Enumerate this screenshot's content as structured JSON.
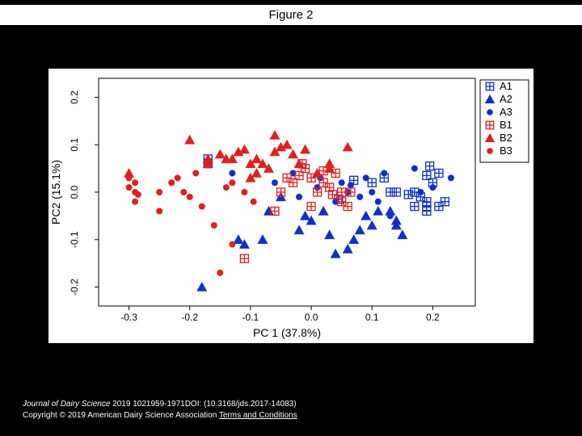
{
  "title": "Figure 2",
  "footer": {
    "journal": "Journal of Dairy Science",
    "citation": " 2019 1021959-1971DOI: (10.3168/jds.2017-14083)",
    "copyright": "Copyright © 2019 American Dairy Science Association ",
    "terms": "Terms and Conditions"
  },
  "chart": {
    "type": "scatter",
    "background_color": "#ffffff",
    "plot_border_color": "#000000",
    "xlabel": "PC 1 (37.8%)",
    "ylabel": "PC2 (15.1%)",
    "label_fontsize": 14,
    "tick_fontsize": 12,
    "xlim": [
      -0.35,
      0.27
    ],
    "ylim": [
      -0.24,
      0.24
    ],
    "xticks": [
      -0.3,
      -0.2,
      -0.1,
      0.0,
      0.1,
      0.2
    ],
    "yticks": [
      -0.2,
      -0.1,
      0.0,
      0.1,
      0.2
    ],
    "x_tick_labels": [
      "-0.3",
      "-0.2",
      "-0.1",
      "0.0",
      "0.1",
      "0.2"
    ],
    "y_tick_labels": [
      "-0.2",
      "-0.1",
      "0.0",
      "0.1",
      "0.2"
    ],
    "series": [
      {
        "id": "A1",
        "label": "A1",
        "marker": "square-open-plus",
        "color": "#1030c8",
        "size": 5,
        "points": [
          [
            -0.17,
            0.07
          ],
          [
            -0.17,
            0.06
          ],
          [
            0.07,
            0.025
          ],
          [
            0.13,
            0.0
          ],
          [
            0.14,
            0.0
          ],
          [
            0.16,
            -0.005
          ],
          [
            0.17,
            0.0
          ],
          [
            0.18,
            -0.01
          ],
          [
            0.17,
            -0.03
          ],
          [
            0.19,
            -0.02
          ],
          [
            0.19,
            -0.03
          ],
          [
            0.19,
            -0.04
          ],
          [
            0.21,
            -0.03
          ],
          [
            0.22,
            -0.02
          ],
          [
            0.2,
            0.02
          ],
          [
            0.19,
            0.035
          ],
          [
            0.21,
            0.04
          ],
          [
            0.12,
            0.03
          ],
          [
            0.1,
            0.02
          ],
          [
            0.195,
            0.055
          ],
          [
            0.045,
            -0.015
          ]
        ]
      },
      {
        "id": "A2",
        "label": "A2",
        "marker": "triangle",
        "color": "#1030c8",
        "size": 5,
        "points": [
          [
            -0.18,
            -0.2
          ],
          [
            -0.12,
            -0.1
          ],
          [
            -0.11,
            -0.11
          ],
          [
            -0.08,
            -0.1
          ],
          [
            -0.07,
            -0.04
          ],
          [
            -0.05,
            -0.01
          ],
          [
            -0.02,
            -0.08
          ],
          [
            -0.01,
            -0.05
          ],
          [
            0.0,
            -0.06
          ],
          [
            0.02,
            -0.04
          ],
          [
            0.03,
            -0.09
          ],
          [
            0.04,
            -0.13
          ],
          [
            0.06,
            -0.12
          ],
          [
            0.07,
            -0.1
          ],
          [
            0.08,
            -0.08
          ],
          [
            0.09,
            -0.05
          ],
          [
            0.1,
            -0.07
          ],
          [
            0.11,
            -0.04
          ],
          [
            0.14,
            -0.06
          ],
          [
            0.14,
            -0.07
          ],
          [
            0.15,
            -0.09
          ],
          [
            0.13,
            -0.04
          ]
        ]
      },
      {
        "id": "A3",
        "label": "A3",
        "marker": "circle",
        "color": "#1030c8",
        "size": 4,
        "points": [
          [
            -0.17,
            0.065
          ],
          [
            -0.13,
            0.04
          ],
          [
            -0.06,
            0.02
          ],
          [
            -0.03,
            0.04
          ],
          [
            -0.02,
            -0.01
          ],
          [
            0.01,
            0.01
          ],
          [
            0.04,
            -0.02
          ],
          [
            0.05,
            0.02
          ],
          [
            0.06,
            0.0
          ],
          [
            0.08,
            -0.01
          ],
          [
            0.09,
            0.03
          ],
          [
            0.11,
            -0.02
          ],
          [
            0.12,
            0.04
          ],
          [
            0.13,
            -0.05
          ],
          [
            0.17,
            0.05
          ],
          [
            0.18,
            0.0
          ],
          [
            0.2,
            0.01
          ],
          [
            0.23,
            0.03
          ],
          [
            0.1,
            0.0
          ],
          [
            0.015,
            0.03
          ],
          [
            0.065,
            0.015
          ]
        ]
      },
      {
        "id": "B1",
        "label": "B1",
        "marker": "square-open-plus",
        "color": "#e02020",
        "size": 5,
        "points": [
          [
            -0.04,
            0.03
          ],
          [
            -0.03,
            0.02
          ],
          [
            -0.02,
            0.035
          ],
          [
            -0.01,
            0.05
          ],
          [
            0.0,
            0.03
          ],
          [
            0.01,
            0.0
          ],
          [
            0.02,
            0.02
          ],
          [
            0.03,
            0.01
          ],
          [
            0.04,
            0.04
          ],
          [
            0.05,
            0.0
          ],
          [
            0.05,
            -0.02
          ],
          [
            0.06,
            -0.03
          ],
          [
            -0.05,
            0.0
          ],
          [
            -0.11,
            -0.14
          ],
          [
            -0.06,
            -0.04
          ],
          [
            0.0,
            -0.03
          ],
          [
            0.035,
            -0.005
          ],
          [
            0.02,
            0.045
          ],
          [
            0.065,
            0.0
          ],
          [
            -0.015,
            0.06
          ]
        ]
      },
      {
        "id": "B2",
        "label": "B2",
        "marker": "triangle",
        "color": "#e02020",
        "size": 5,
        "points": [
          [
            -0.3,
            0.04
          ],
          [
            -0.2,
            0.11
          ],
          [
            -0.17,
            0.06
          ],
          [
            -0.17,
            0.07
          ],
          [
            -0.15,
            0.08
          ],
          [
            -0.14,
            0.07
          ],
          [
            -0.13,
            0.07
          ],
          [
            -0.12,
            0.085
          ],
          [
            -0.11,
            0.09
          ],
          [
            -0.1,
            0.06
          ],
          [
            -0.09,
            0.07
          ],
          [
            -0.08,
            0.06
          ],
          [
            -0.07,
            0.05
          ],
          [
            -0.06,
            0.085
          ],
          [
            -0.06,
            0.12
          ],
          [
            -0.05,
            0.095
          ],
          [
            -0.04,
            0.1
          ],
          [
            -0.03,
            0.08
          ],
          [
            -0.02,
            0.06
          ],
          [
            -0.01,
            0.09
          ],
          [
            0.01,
            0.04
          ],
          [
            0.03,
            0.05
          ],
          [
            0.03,
            0.06
          ],
          [
            0.06,
            0.095
          ],
          [
            -0.09,
            0.04
          ],
          [
            -0.1,
            0.03
          ]
        ]
      },
      {
        "id": "B3",
        "label": "B3",
        "marker": "circle",
        "color": "#e02020",
        "size": 4,
        "points": [
          [
            -0.3,
            0.03
          ],
          [
            -0.29,
            0.02
          ],
          [
            -0.3,
            0.01
          ],
          [
            -0.29,
            0.0
          ],
          [
            -0.285,
            -0.005
          ],
          [
            -0.29,
            -0.02
          ],
          [
            -0.25,
            0.0
          ],
          [
            -0.23,
            0.02
          ],
          [
            -0.22,
            0.03
          ],
          [
            -0.21,
            0.0
          ],
          [
            -0.2,
            -0.01
          ],
          [
            -0.19,
            0.04
          ],
          [
            -0.14,
            0.01
          ],
          [
            -0.13,
            0.02
          ],
          [
            -0.16,
            -0.07
          ],
          [
            -0.13,
            -0.11
          ],
          [
            -0.15,
            -0.17
          ],
          [
            -0.25,
            -0.04
          ],
          [
            -0.18,
            -0.03
          ],
          [
            -0.11,
            0.0
          ],
          [
            -0.095,
            -0.02
          ]
        ]
      }
    ],
    "legend": {
      "position": "outside-right-top",
      "items": [
        "A1",
        "A2",
        "A3",
        "B1",
        "B2",
        "B3"
      ]
    }
  }
}
